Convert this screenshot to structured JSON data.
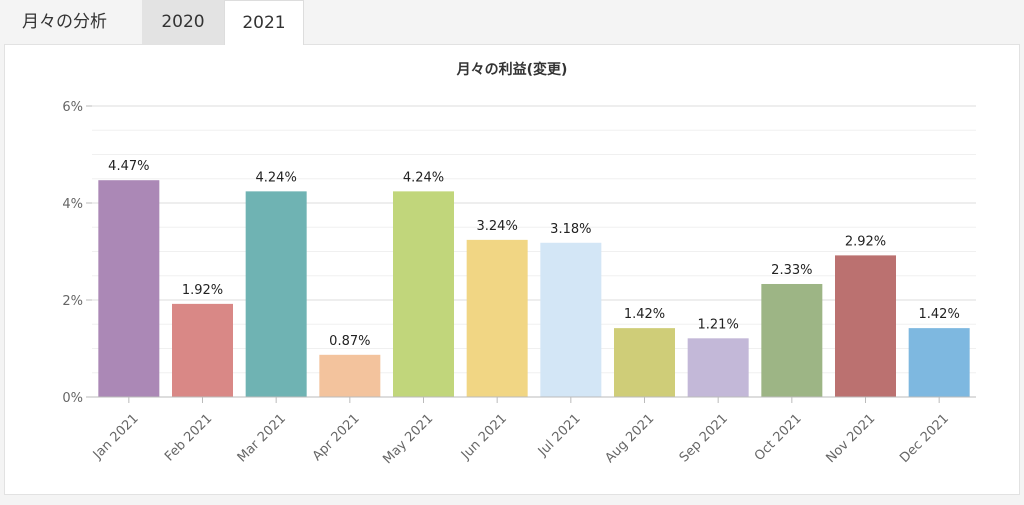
{
  "tabs": {
    "title": "月々の分析",
    "items": [
      "2020",
      "2021"
    ],
    "active": "2021"
  },
  "colors": {
    "bars": [
      "#ab88b6",
      "#d98886",
      "#6fb3b3",
      "#f3c39d",
      "#c1d67b",
      "#f1d684",
      "#d3e6f6",
      "#cfcd78",
      "#c3b8d8",
      "#9db585",
      "#bb7170",
      "#7eb8e0"
    ]
  },
  "chart_data": {
    "type": "bar",
    "title": "月々の利益(変更)",
    "categories": [
      "Jan 2021",
      "Feb 2021",
      "Mar 2021",
      "Apr 2021",
      "May 2021",
      "Jun 2021",
      "Jul 2021",
      "Aug 2021",
      "Sep 2021",
      "Oct 2021",
      "Nov 2021",
      "Dec 2021"
    ],
    "values": [
      4.47,
      1.92,
      4.24,
      0.87,
      4.24,
      3.24,
      3.18,
      1.42,
      1.21,
      2.33,
      2.92,
      1.42
    ],
    "value_labels": [
      "4.47%",
      "1.92%",
      "4.24%",
      "0.87%",
      "4.24%",
      "3.24%",
      "3.18%",
      "1.42%",
      "1.21%",
      "2.33%",
      "2.92%",
      "1.42%"
    ],
    "ylim": [
      0,
      6
    ],
    "yticks": [
      0,
      2,
      4,
      6
    ],
    "ytick_labels": [
      "0%",
      "2%",
      "4%",
      "6%"
    ],
    "grid": true,
    "legend": "none"
  }
}
